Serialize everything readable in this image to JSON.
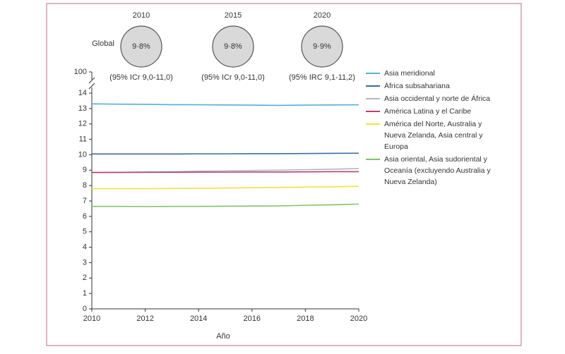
{
  "chart_data": {
    "type": "line",
    "x_label": "Año",
    "x": [
      2010,
      2011,
      2012,
      2013,
      2014,
      2015,
      2016,
      2017,
      2018,
      2019,
      2020
    ],
    "xlim": [
      2010,
      2020
    ],
    "xticks": [
      2010,
      2012,
      2014,
      2016,
      2018,
      2020
    ],
    "ylim": [
      0,
      14
    ],
    "yticks": [
      0,
      1,
      2,
      3,
      4,
      5,
      6,
      7,
      8,
      9,
      10,
      11,
      12,
      13,
      14
    ],
    "y_break_tick": 100,
    "series": [
      {
        "name": "Asia meridional",
        "color": "#4fb3d3",
        "values": [
          13.3,
          13.28,
          13.27,
          13.25,
          13.24,
          13.23,
          13.22,
          13.2,
          13.22,
          13.23,
          13.24
        ]
      },
      {
        "name": "África subsahariana",
        "color": "#3b6b9c",
        "values": [
          10.05,
          10.05,
          10.05,
          10.05,
          10.06,
          10.06,
          10.07,
          10.07,
          10.08,
          10.09,
          10.1
        ]
      },
      {
        "name": "Asia occidental y norte de África",
        "color": "#b4b4c4",
        "values": [
          8.85,
          8.86,
          8.88,
          8.9,
          8.93,
          8.95,
          8.98,
          9.0,
          9.03,
          9.06,
          9.1
        ]
      },
      {
        "name": "América Latina y el Caribe",
        "color": "#b3426e",
        "values": [
          8.85,
          8.85,
          8.86,
          8.86,
          8.87,
          8.87,
          8.88,
          8.88,
          8.89,
          8.9,
          8.9
        ]
      },
      {
        "name": "América del Norte, Australia y Nueva Zelanda, Asia central y Europa",
        "color": "#f2e33a",
        "values": [
          7.8,
          7.8,
          7.8,
          7.81,
          7.82,
          7.84,
          7.86,
          7.88,
          7.9,
          7.92,
          7.95
        ]
      },
      {
        "name": "Asia oriental, Asia sudoriental y Oceanía (excluyendo Australia y Nueva Zelanda)",
        "color": "#82c262",
        "values": [
          6.65,
          6.65,
          6.64,
          6.65,
          6.65,
          6.66,
          6.67,
          6.68,
          6.72,
          6.75,
          6.8
        ]
      }
    ],
    "global": {
      "label": "Global",
      "items": [
        {
          "year": "2010",
          "value": 9.8,
          "value_label": "9·8%",
          "ci": "(95% ICr 9,0-11,0)"
        },
        {
          "year": "2015",
          "value": 9.8,
          "value_label": "9·8%",
          "ci": "(95% ICr 9,0-11,0)"
        },
        {
          "year": "2020",
          "value": 9.9,
          "value_label": "9·9%",
          "ci": "(95% IRC 9,1-11,2)"
        }
      ]
    }
  }
}
